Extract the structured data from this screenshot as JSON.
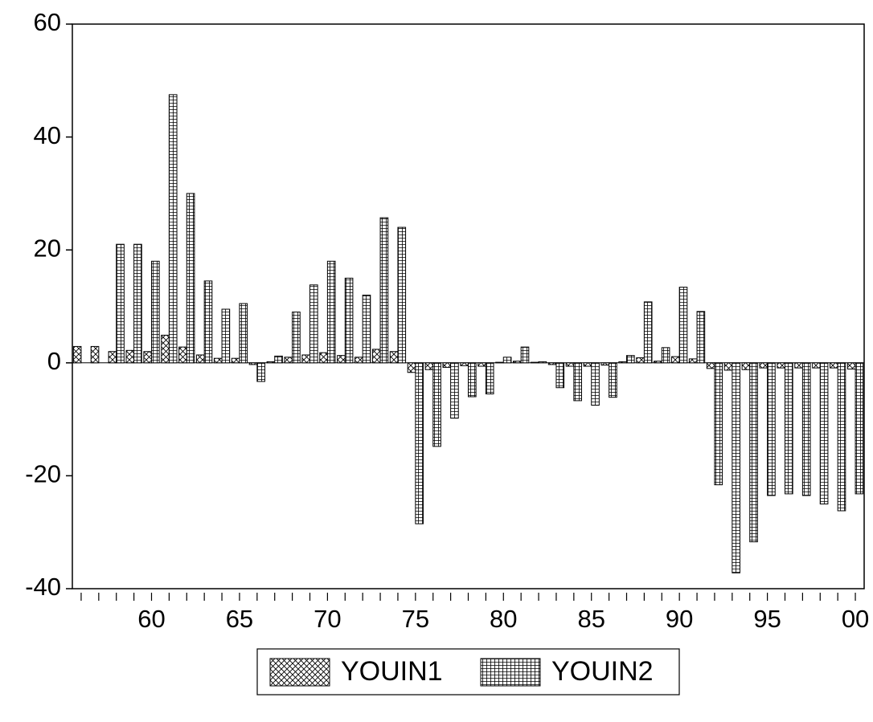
{
  "chart_data": {
    "type": "bar",
    "categories": [
      null,
      null,
      null,
      null,
      "60",
      null,
      null,
      null,
      null,
      "65",
      null,
      null,
      null,
      null,
      "70",
      null,
      null,
      null,
      null,
      "75",
      null,
      null,
      null,
      null,
      "80",
      null,
      null,
      null,
      null,
      "85",
      null,
      null,
      null,
      null,
      "90",
      null,
      null,
      null,
      null,
      "95",
      null,
      null,
      null,
      null,
      "00"
    ],
    "series": [
      {
        "name": "YOUIN1",
        "color": "#000000",
        "pattern": "crosshatch",
        "values": [
          2.9,
          2.9,
          2,
          2.2,
          2,
          4.9,
          2.8,
          1.4,
          0.8,
          0.8,
          -0.3,
          0.2,
          1,
          1.4,
          1.8,
          1.3,
          1,
          2.4,
          2,
          -1.7,
          -1.2,
          -0.8,
          -0.5,
          -0.6,
          0.1,
          0.3,
          0.1,
          -0.3,
          -0.6,
          -0.6,
          -0.4,
          0.2,
          0.9,
          0.3,
          1.1,
          0.7,
          -1,
          -1.3,
          -1.2,
          -0.9,
          -0.9,
          -0.9,
          -0.9,
          -0.9,
          -1.1
        ]
      },
      {
        "name": "YOUIN2",
        "color": "#000000",
        "pattern": "hlines",
        "values": [
          0,
          0,
          21,
          21,
          18,
          47.5,
          30,
          14.5,
          9.5,
          10.5,
          -3.3,
          1.2,
          9,
          13.8,
          18,
          15,
          12,
          25.7,
          24,
          -28.5,
          -14.8,
          -9.8,
          -6,
          -5.5,
          1,
          2.8,
          0.2,
          -4.4,
          -6.7,
          -7.5,
          -6.1,
          1.3,
          10.8,
          2.7,
          13.4,
          9.1,
          -21.6,
          -37.2,
          -31.7,
          -23.5,
          -23.2,
          -23.5,
          -25,
          -26.2,
          -23.2
        ]
      }
    ],
    "ylim": [
      -40,
      60
    ],
    "yticks": [
      -40,
      -20,
      0,
      20,
      40,
      60
    ],
    "grid": false,
    "legend": "bottom"
  }
}
